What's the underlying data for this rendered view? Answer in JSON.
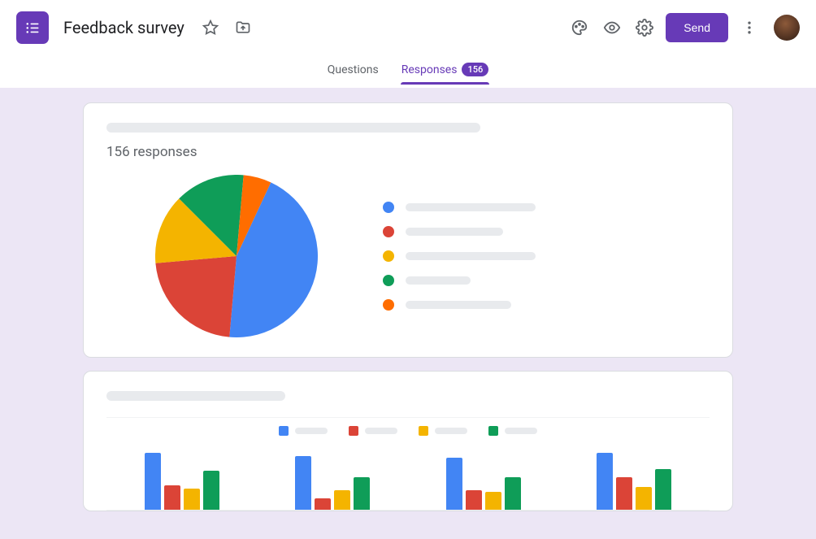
{
  "header": {
    "title": "Feedback survey",
    "send_label": "Send"
  },
  "tabs": {
    "questions": "Questions",
    "responses": "Responses",
    "badge": "156"
  },
  "summary": {
    "count_label": "156 responses"
  },
  "colors": {
    "primary": "#673ab7",
    "blue": "#4285f4",
    "red": "#db4437",
    "yellow": "#f4b400",
    "green": "#0f9d58",
    "orange": "#ff6d00",
    "skeleton": "#e8eaed",
    "canvas_bg": "#ece6f5",
    "text_muted": "#5f6368"
  },
  "pie": {
    "type": "pie",
    "radius": 100,
    "slices": [
      {
        "color": "#4285f4",
        "start": -65,
        "sweep": 160
      },
      {
        "color": "#db4437",
        "start": 95,
        "sweep": 80
      },
      {
        "color": "#f4b400",
        "start": 175,
        "sweep": 50
      },
      {
        "color": "#0f9d58",
        "start": 225,
        "sweep": 50
      },
      {
        "color": "#ff6d00",
        "start": 275,
        "sweep": 20
      }
    ],
    "legend_widths": [
      160,
      120,
      160,
      80,
      130
    ]
  },
  "bar_chart": {
    "type": "grouped-bar",
    "colors": [
      "#4285f4",
      "#db4437",
      "#f4b400",
      "#0f9d58"
    ],
    "legend_skel_width": 40,
    "groups": [
      [
        70,
        30,
        26,
        48
      ],
      [
        66,
        14,
        24,
        40
      ],
      [
        64,
        24,
        22,
        40
      ],
      [
        70,
        40,
        28,
        50
      ]
    ]
  }
}
